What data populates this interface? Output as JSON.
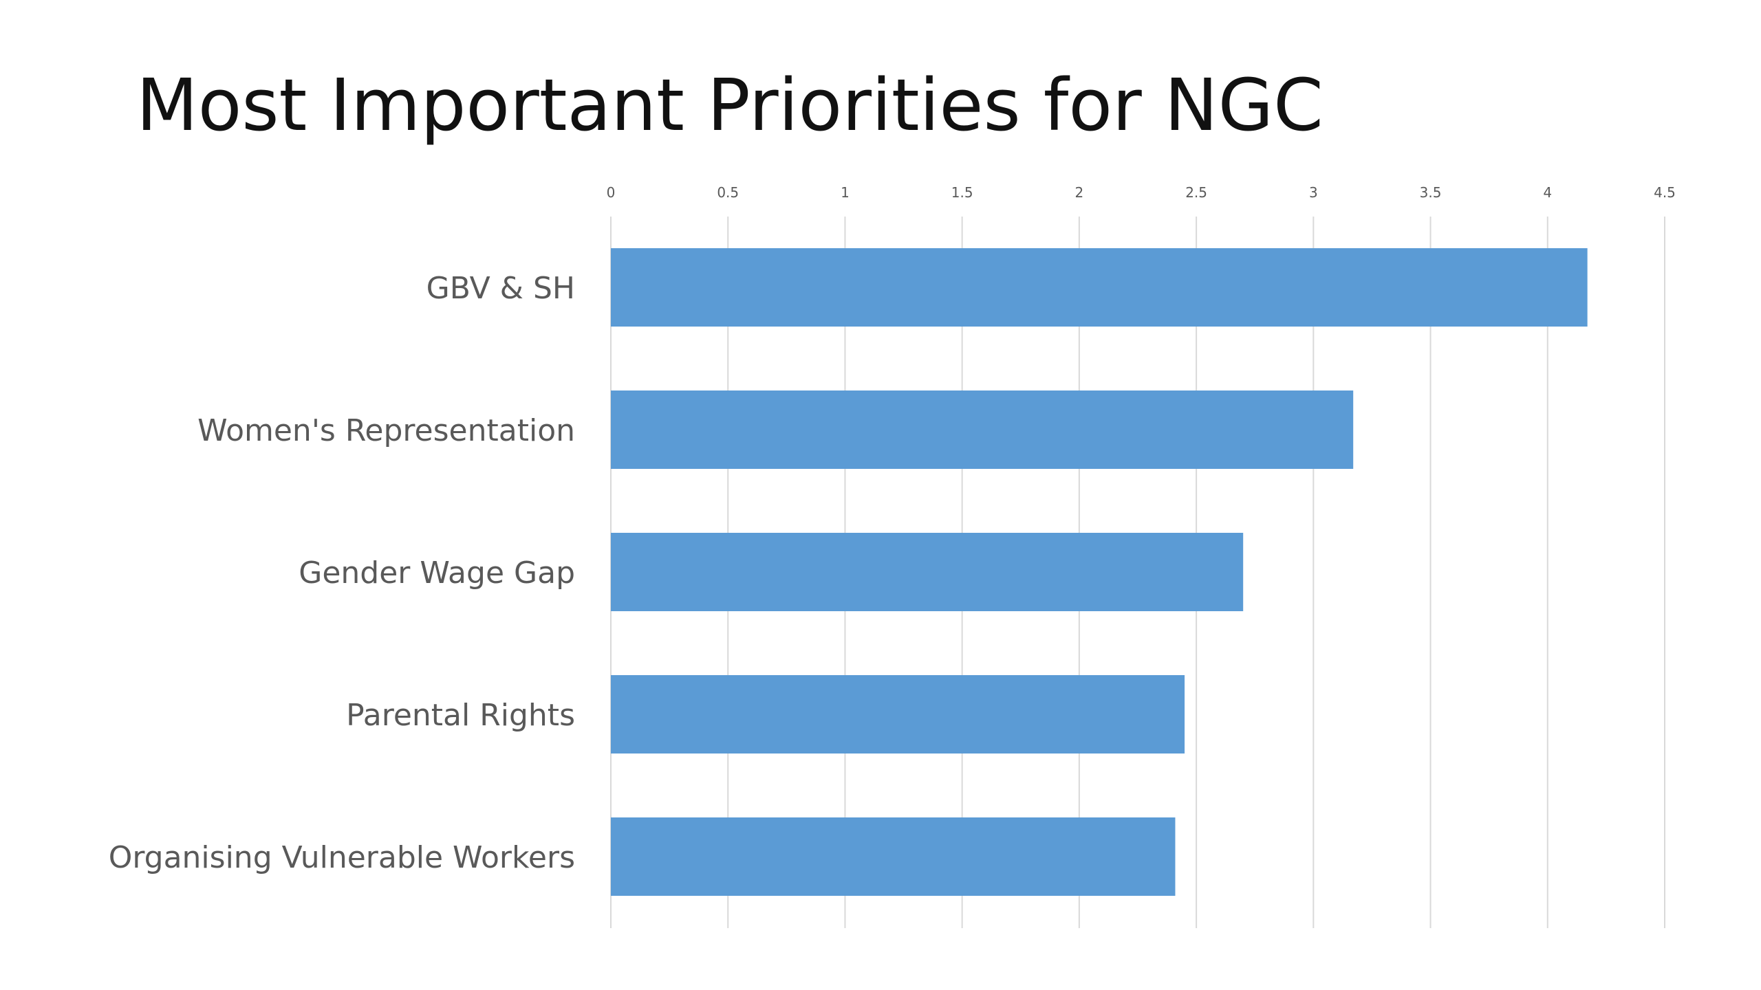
{
  "slide": {
    "title": "Most Important Priorities for NGC"
  },
  "chart_data": {
    "type": "bar",
    "orientation": "horizontal",
    "title": "Most Important Priorities for NGC",
    "categories": [
      "GBV & SH",
      "Women's Representation",
      "Gender Wage Gap",
      "Parental Rights",
      "Organising Vulnerable Workers"
    ],
    "values": [
      4.17,
      3.17,
      2.7,
      2.45,
      2.41
    ],
    "xlim": [
      0,
      4.5
    ],
    "ticks": [
      0,
      0.5,
      1,
      1.5,
      2,
      2.5,
      3,
      3.5,
      4,
      4.5
    ],
    "tick_labels": [
      "0",
      "0.5",
      "1",
      "1.5",
      "2",
      "2.5",
      "3",
      "3.5",
      "4",
      "4.5"
    ],
    "axis_position": "top",
    "grid": true,
    "legend": "none",
    "colors": {
      "bar": "#5B9BD5",
      "grid": "#D9D9D9",
      "tick_label": "#595959",
      "category_label": "#595959",
      "title": "#111111"
    }
  }
}
